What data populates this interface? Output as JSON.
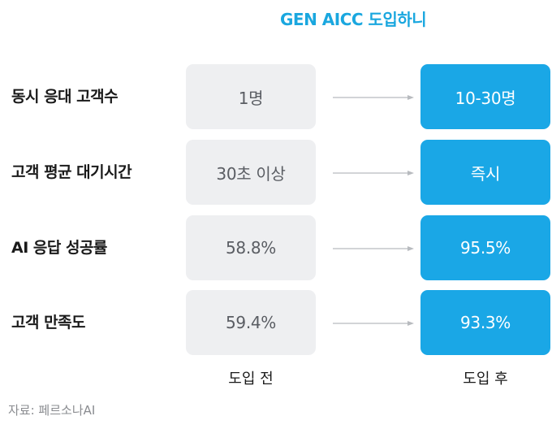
{
  "header": {
    "title": "GEN AICC 도입하니"
  },
  "rows": [
    {
      "label": "동시 응대 고객수",
      "before": "1명",
      "after": "10-30명"
    },
    {
      "label": "고객 평균 대기시간",
      "before": "30초 이상",
      "after": "즉시"
    },
    {
      "label": "AI 응답 성공률",
      "before": "58.8%",
      "after": "95.5%"
    },
    {
      "label": "고객 만족도",
      "before": "59.4%",
      "after": "93.3%"
    }
  ],
  "columns": {
    "before_label": "도입 전",
    "after_label": "도입 후"
  },
  "source": "자료: 페르소나AI",
  "colors": {
    "accent": "#1aa7e6",
    "title": "#1aa7df",
    "before_box": "#eeeff1",
    "arrow": "#b8bbbf"
  },
  "icons": {
    "arrow": "arrow-right-icon"
  }
}
